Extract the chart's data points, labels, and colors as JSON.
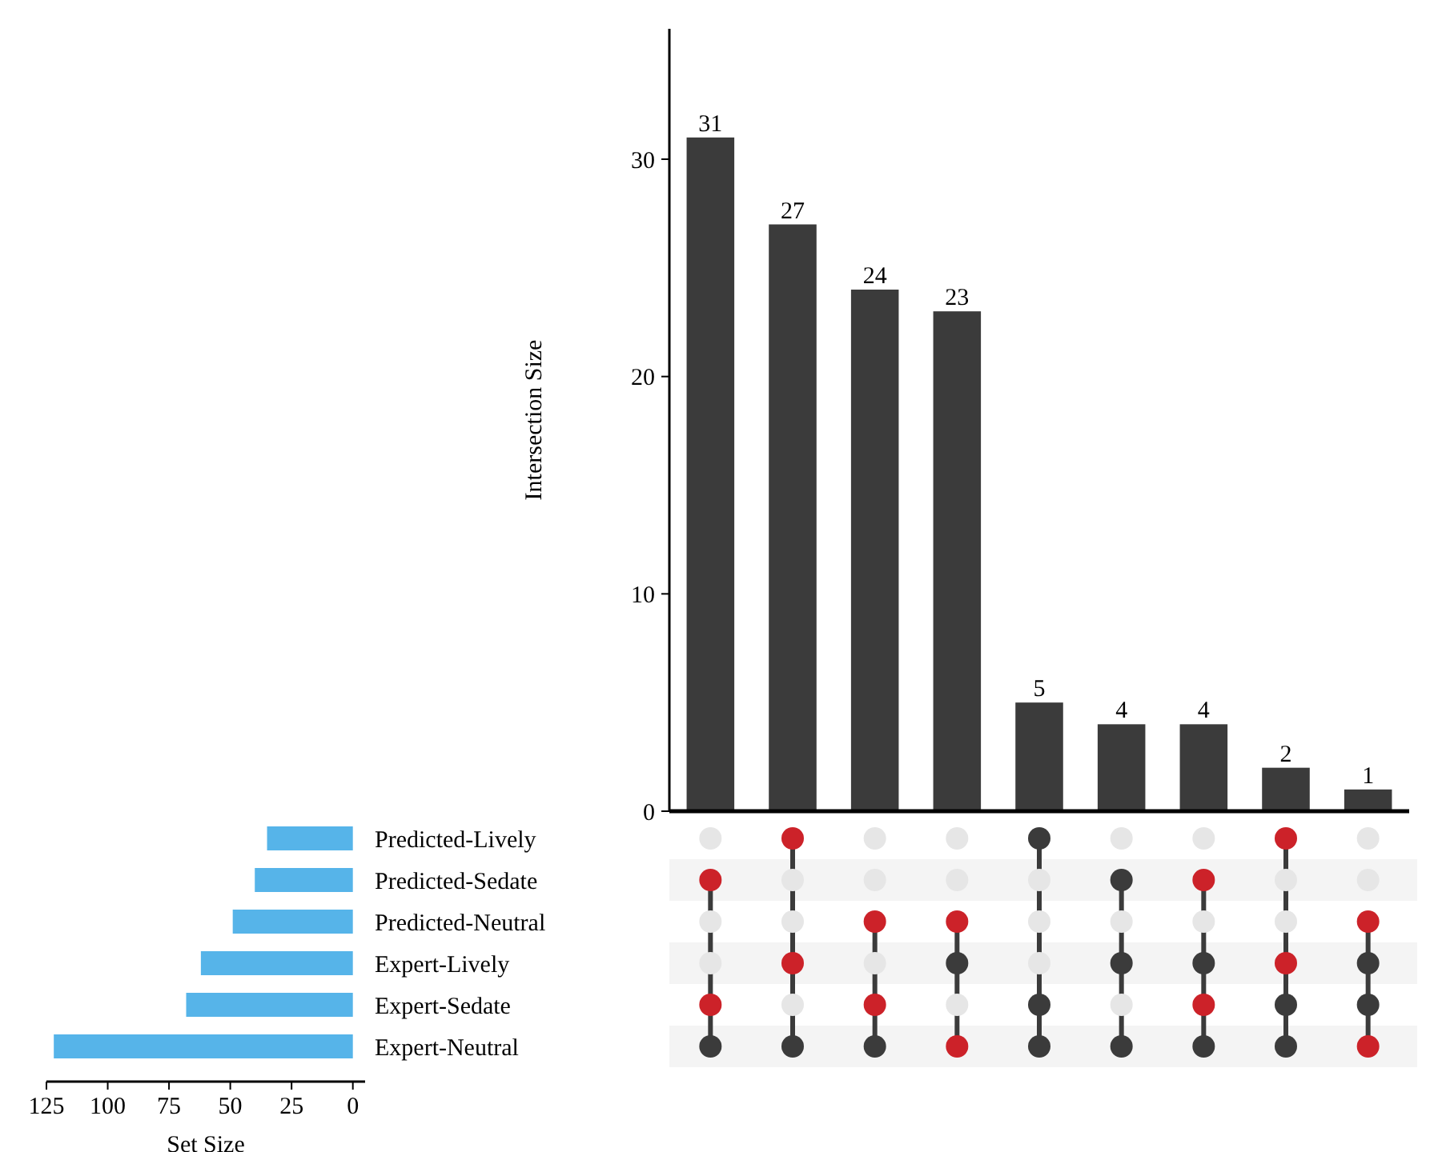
{
  "chart_data": [
    {
      "type": "bar",
      "categories": [
        null,
        null,
        null,
        null,
        null,
        null,
        null,
        null,
        null
      ],
      "values": [
        31,
        27,
        24,
        23,
        5,
        4,
        4,
        2,
        1
      ],
      "color": "#3b3b3b",
      "ylim": [
        0,
        36
      ],
      "yticks": [
        0,
        10,
        20,
        30
      ],
      "ylabel": "Intersection Size",
      "data_labels": true
    },
    {
      "type": "bar",
      "orientation": "horizontal",
      "categories": [
        "Predicted-Lively",
        "Predicted-Sedate",
        "Predicted-Neutral",
        "Expert-Lively",
        "Expert-Sedate",
        "Expert-Neutral"
      ],
      "values": [
        35,
        40,
        49,
        62,
        68,
        122
      ],
      "color": "#56b4e9",
      "xlim": [
        125,
        -5
      ],
      "xticks": [
        125,
        100,
        75,
        50,
        25,
        0
      ],
      "xlabel": "Set Size"
    }
  ]
}
